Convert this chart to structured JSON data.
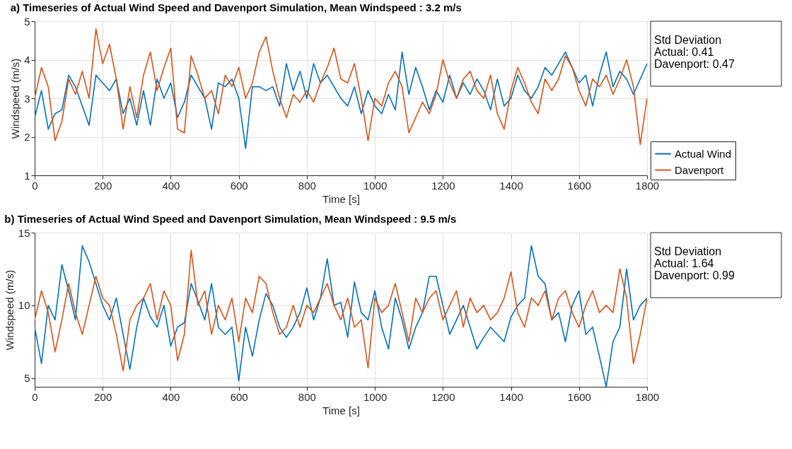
{
  "chart_data": [
    {
      "type": "line",
      "title": "a) Timeseries of Actual Wind Speed and Davenport Simulation, Mean Windspeed : 3.2 m/s",
      "xlabel": "Time [s]",
      "ylabel": "Windspeed (m/s)",
      "x": [
        0,
        20,
        40,
        60,
        80,
        100,
        120,
        140,
        160,
        180,
        200,
        220,
        240,
        260,
        280,
        300,
        320,
        340,
        360,
        380,
        400,
        420,
        440,
        460,
        480,
        500,
        520,
        540,
        560,
        580,
        600,
        620,
        640,
        660,
        680,
        700,
        720,
        740,
        760,
        780,
        800,
        820,
        840,
        860,
        880,
        900,
        920,
        940,
        960,
        980,
        1000,
        1020,
        1040,
        1060,
        1080,
        1100,
        1120,
        1140,
        1160,
        1180,
        1200,
        1220,
        1240,
        1260,
        1280,
        1300,
        1320,
        1340,
        1360,
        1380,
        1400,
        1420,
        1440,
        1460,
        1480,
        1500,
        1520,
        1540,
        1560,
        1580,
        1600,
        1620,
        1640,
        1660,
        1680,
        1700,
        1720,
        1740,
        1760,
        1780,
        1800
      ],
      "series": [
        {
          "name": "Actual Wind",
          "color": "#0072bd",
          "values": [
            2.5,
            3.2,
            2.2,
            2.6,
            2.7,
            3.6,
            3.3,
            2.8,
            2.3,
            3.6,
            3.4,
            3.2,
            3.5,
            2.6,
            3.0,
            2.3,
            3.2,
            2.3,
            3.5,
            3.0,
            3.4,
            2.5,
            2.9,
            3.6,
            3.3,
            3.0,
            2.2,
            3.4,
            3.3,
            3.5,
            3.0,
            1.7,
            3.3,
            3.3,
            3.2,
            3.3,
            2.8,
            3.9,
            3.2,
            3.7,
            3.0,
            3.9,
            3.4,
            3.6,
            3.3,
            3.0,
            2.8,
            3.3,
            2.6,
            3.2,
            2.8,
            2.6,
            3.1,
            2.7,
            4.2,
            3.1,
            3.8,
            3.3,
            2.7,
            3.2,
            2.9,
            3.6,
            3.0,
            3.4,
            3.1,
            3.5,
            3.2,
            2.7,
            3.5,
            2.8,
            3.0,
            3.6,
            3.2,
            3.0,
            3.3,
            3.8,
            3.6,
            3.9,
            4.2,
            3.8,
            3.4,
            3.6,
            2.8,
            3.6,
            4.2,
            3.3,
            3.7,
            3.5,
            3.1,
            3.5,
            3.9
          ]
        },
        {
          "name": "Davenport",
          "color": "#d95319",
          "values": [
            3.0,
            3.8,
            3.3,
            1.9,
            2.4,
            3.5,
            3.1,
            3.7,
            3.0,
            4.8,
            3.9,
            4.4,
            3.5,
            2.2,
            3.3,
            2.5,
            3.6,
            4.2,
            3.2,
            3.8,
            4.3,
            2.2,
            2.1,
            4.1,
            3.6,
            3.0,
            3.2,
            2.6,
            3.6,
            3.3,
            3.8,
            3.0,
            3.4,
            4.2,
            4.6,
            3.7,
            3.0,
            2.5,
            3.1,
            2.9,
            3.2,
            2.9,
            3.4,
            3.8,
            4.3,
            3.5,
            3.4,
            3.9,
            3.0,
            1.9,
            3.0,
            2.8,
            3.4,
            3.7,
            3.3,
            2.1,
            2.5,
            2.9,
            2.6,
            3.1,
            4.0,
            3.4,
            3.0,
            3.5,
            3.7,
            3.2,
            3.0,
            3.6,
            2.6,
            2.2,
            3.2,
            3.8,
            3.4,
            2.9,
            2.6,
            3.5,
            3.2,
            3.5,
            4.1,
            3.8,
            3.2,
            2.8,
            3.5,
            3.3,
            3.6,
            3.1,
            3.5,
            4.0,
            3.3,
            1.8,
            3.0
          ]
        }
      ],
      "xlim": [
        0,
        1800
      ],
      "xticks": [
        0,
        200,
        400,
        600,
        800,
        1000,
        1200,
        1400,
        1600,
        1800
      ],
      "ylim": [
        1,
        5
      ],
      "yticks": [
        1,
        2,
        3,
        4,
        5
      ],
      "grid": true,
      "legend": "bottom right",
      "annotations": [
        "Std Deviation",
        "Actual: 0.41",
        "Davenport: 0.47"
      ]
    },
    {
      "type": "line",
      "title": "b) Timeseries of Actual Wind Speed and Davenport Simulation, Mean Windspeed : 9.5 m/s",
      "xlabel": "Time [s]",
      "ylabel": "Windspeed (m/s)",
      "x": [
        0,
        20,
        40,
        60,
        80,
        100,
        120,
        140,
        160,
        180,
        200,
        220,
        240,
        260,
        280,
        300,
        320,
        340,
        360,
        380,
        400,
        420,
        440,
        460,
        480,
        500,
        520,
        540,
        560,
        580,
        600,
        620,
        640,
        660,
        680,
        700,
        720,
        740,
        760,
        780,
        800,
        820,
        840,
        860,
        880,
        900,
        920,
        940,
        960,
        980,
        1000,
        1020,
        1040,
        1060,
        1080,
        1100,
        1120,
        1140,
        1160,
        1180,
        1200,
        1220,
        1240,
        1260,
        1280,
        1300,
        1320,
        1340,
        1360,
        1380,
        1400,
        1420,
        1440,
        1460,
        1480,
        1500,
        1520,
        1540,
        1560,
        1580,
        1600,
        1620,
        1640,
        1660,
        1680,
        1700,
        1720,
        1740,
        1760,
        1780,
        1800
      ],
      "series": [
        {
          "name": "Actual Wind",
          "color": "#0072bd",
          "values": [
            8.5,
            6.0,
            10.0,
            9.0,
            12.8,
            11.0,
            9.0,
            14.1,
            13.0,
            11.5,
            10.0,
            9.0,
            10.5,
            8.0,
            5.6,
            8.5,
            10.5,
            9.2,
            8.5,
            10.0,
            7.2,
            8.5,
            8.8,
            11.5,
            10.3,
            9.0,
            11.5,
            8.5,
            8.0,
            8.5,
            4.8,
            8.5,
            6.5,
            9.0,
            10.8,
            10.0,
            8.5,
            7.8,
            8.5,
            9.5,
            11.2,
            9.0,
            10.5,
            13.2,
            10.0,
            10.2,
            7.8,
            11.6,
            9.5,
            9.0,
            11.0,
            8.5,
            7.0,
            10.5,
            9.0,
            7.0,
            8.5,
            9.5,
            12.0,
            12.0,
            10.0,
            8.0,
            9.0,
            10.0,
            8.5,
            7.0,
            7.8,
            8.5,
            8.0,
            7.5,
            9.2,
            10.0,
            10.5,
            14.1,
            12.0,
            11.5,
            9.0,
            9.5,
            7.5,
            10.0,
            11.0,
            8.0,
            8.5,
            6.5,
            4.4,
            7.5,
            8.5,
            12.5,
            9.0,
            10.0,
            10.5
          ]
        },
        {
          "name": "Davenport",
          "color": "#d95319",
          "values": [
            9.0,
            11.0,
            9.5,
            6.8,
            9.0,
            11.5,
            9.5,
            8.0,
            10.0,
            12.0,
            10.5,
            10.0,
            8.0,
            5.5,
            9.0,
            10.0,
            10.5,
            11.5,
            9.0,
            11.0,
            10.0,
            6.2,
            8.0,
            13.8,
            10.0,
            11.0,
            8.0,
            10.0,
            9.0,
            10.5,
            7.5,
            10.5,
            9.5,
            12.0,
            11.5,
            9.5,
            8.0,
            8.5,
            10.0,
            8.5,
            10.0,
            9.5,
            10.5,
            11.5,
            10.0,
            9.0,
            10.5,
            8.5,
            9.0,
            5.7,
            10.5,
            9.5,
            10.0,
            11.5,
            9.5,
            7.5,
            10.5,
            9.5,
            10.5,
            11.0,
            9.0,
            10.0,
            11.0,
            8.5,
            10.5,
            9.5,
            10.0,
            9.0,
            9.5,
            10.5,
            12.3,
            9.5,
            8.5,
            10.5,
            10.0,
            11.0,
            9.0,
            10.5,
            11.0,
            9.5,
            8.5,
            10.0,
            11.0,
            9.5,
            10.0,
            9.5,
            12.5,
            10.5,
            6.0,
            8.0,
            10.5
          ]
        }
      ],
      "xlim": [
        0,
        1800
      ],
      "xticks": [
        0,
        200,
        400,
        600,
        800,
        1000,
        1200,
        1400,
        1600,
        1800
      ],
      "ylim": [
        4.4,
        15
      ],
      "yticks": [
        5,
        10,
        15
      ],
      "grid": true,
      "legend": "bottom right",
      "annotations": [
        "Std Deviation",
        "Actual: 1.64",
        "Davenport: 0.99"
      ]
    }
  ]
}
